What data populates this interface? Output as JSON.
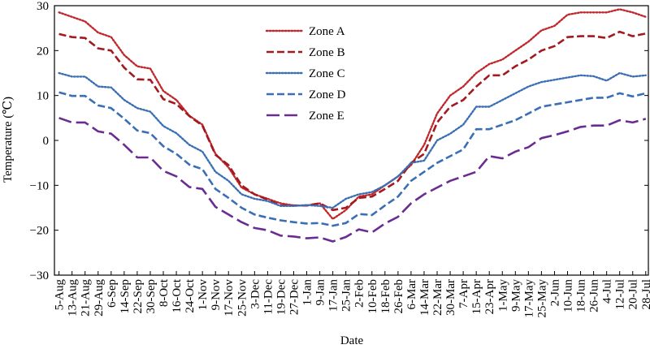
{
  "chart_data": {
    "type": "line",
    "title": "",
    "xlabel": "Date",
    "ylabel": "Temperature (℃)",
    "ylim": [
      -30,
      30
    ],
    "yticks": [
      -30,
      -20,
      -10,
      0,
      10,
      20,
      30
    ],
    "grid": false,
    "legend_position": "top-center",
    "categories": [
      "5-Aug",
      "13-Aug",
      "21-Aug",
      "29-Aug",
      "6-Sep",
      "14-Sep",
      "22-Sep",
      "30-Sep",
      "8-Oct",
      "16-Oct",
      "24-Oct",
      "1-Nov",
      "9-Nov",
      "17-Nov",
      "25-Nov",
      "3-Dec",
      "11-Dec",
      "19-Dec",
      "27-Dec",
      "1-Jan",
      "9-Jan",
      "17-Jan",
      "25-Jan",
      "2-Feb",
      "10-Feb",
      "18-Feb",
      "26-Feb",
      "6-Mar",
      "14-Mar",
      "22-Mar",
      "30-Mar",
      "7-Apr",
      "15-Apr",
      "23-Apr",
      "1-May",
      "9-May",
      "17-May",
      "25-May",
      "2-Jun",
      "10-Jun",
      "18-Jun",
      "26-Jun",
      "4-Jul",
      "12-Jul",
      "20-Jul",
      "28-Jul"
    ],
    "series": [
      {
        "name": "Zone A",
        "color": "#c0282d",
        "dash": "dotted",
        "values": [
          28.5,
          27.5,
          26.5,
          24,
          23,
          19,
          16.5,
          16,
          11,
          9,
          5.5,
          3.5,
          -3,
          -6,
          -10.5,
          -12,
          -13,
          -14,
          -14.5,
          -14.5,
          -14,
          -17.5,
          -15.5,
          -12.5,
          -12,
          -10,
          -8,
          -5.5,
          -1,
          6,
          10,
          12,
          15,
          17,
          18,
          20,
          22,
          24.5,
          25.5,
          28,
          28.5,
          28.5,
          28.5,
          29.2,
          28.5,
          27.5
        ]
      },
      {
        "name": "Zone B",
        "color": "#a31a1e",
        "dash": "longdash",
        "values": [
          23.7,
          23,
          22.8,
          20.5,
          20,
          16.2,
          13.6,
          13.5,
          9.2,
          8.1,
          5.4,
          3.3,
          -3.2,
          -5.5,
          -10,
          -12,
          -13.2,
          -14.5,
          -14.5,
          -14.5,
          -14,
          -15.5,
          -15,
          -12.8,
          -12.5,
          -10.8,
          -9,
          -5,
          -3,
          4,
          7.5,
          9,
          12,
          14.5,
          14.5,
          16.5,
          18,
          20,
          21,
          23,
          23.2,
          23.2,
          22.8,
          24.2,
          23.2,
          23.8
        ]
      },
      {
        "name": "Zone C",
        "color": "#3a6fb5",
        "dash": "dotted",
        "values": [
          15,
          14.2,
          14.2,
          12,
          11.8,
          9,
          7.2,
          6.4,
          3.2,
          1.6,
          -1,
          -2.5,
          -7,
          -9,
          -12,
          -13,
          -13.5,
          -14.6,
          -14.6,
          -14.4,
          -14.6,
          -15,
          -13,
          -12,
          -11.5,
          -10,
          -8,
          -5,
          -4.5,
          0,
          1.5,
          3.5,
          7.5,
          7.5,
          9,
          10.5,
          12,
          13,
          13.5,
          14,
          14.5,
          14.3,
          13.3,
          15,
          14.2,
          14.5
        ]
      },
      {
        "name": "Zone D",
        "color": "#3a6fb5",
        "dash": "longdash",
        "values": [
          10.7,
          9.9,
          9.9,
          7.8,
          7.2,
          4.8,
          2.2,
          1.6,
          -1.3,
          -3,
          -5.4,
          -6.4,
          -10.8,
          -12.8,
          -15,
          -16.5,
          -17.2,
          -17.8,
          -18.2,
          -18.5,
          -18.4,
          -19,
          -18.4,
          -16.4,
          -16.6,
          -14.5,
          -12.5,
          -9,
          -7,
          -5,
          -3.5,
          -2,
          2.5,
          2.5,
          3.5,
          4.5,
          6,
          7.5,
          8,
          8.5,
          9,
          9.5,
          9.5,
          10.5,
          9.8,
          10.5
        ]
      },
      {
        "name": "Zone E",
        "color": "#6a2c91",
        "dash": "longdash2",
        "values": [
          5,
          4,
          4,
          2,
          1.5,
          -1,
          -3.8,
          -3.8,
          -6.8,
          -8,
          -10.4,
          -10.8,
          -14.8,
          -16.5,
          -18.2,
          -19.5,
          -20,
          -21.2,
          -21.4,
          -21.8,
          -21.6,
          -22.5,
          -21.5,
          -19.8,
          -20.5,
          -18.5,
          -17,
          -14,
          -12,
          -10.5,
          -9,
          -8,
          -7,
          -3.5,
          -4,
          -2.5,
          -1.5,
          0.5,
          1.2,
          2,
          3,
          3.3,
          3.3,
          4.5,
          4,
          4.8
        ]
      }
    ]
  }
}
